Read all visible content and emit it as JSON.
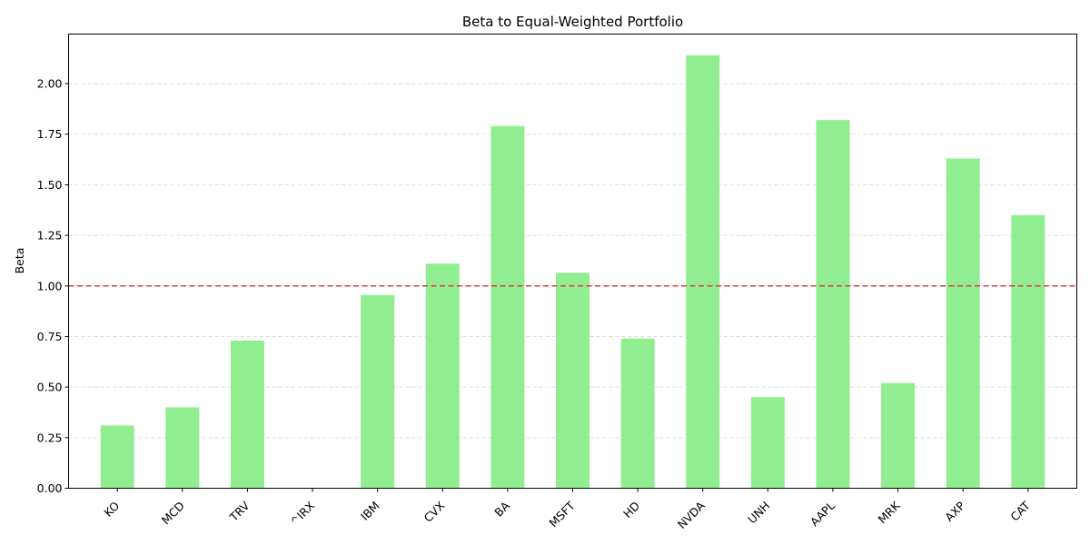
{
  "chart_data": {
    "type": "bar",
    "title": "Beta to Equal-Weighted Portfolio",
    "xlabel": "",
    "ylabel": "Beta",
    "categories": [
      "KO",
      "MCD",
      "TRV",
      "^IRX",
      "IBM",
      "CVX",
      "BA",
      "MSFT",
      "HD",
      "NVDA",
      "UNH",
      "AAPL",
      "MRK",
      "AXP",
      "CAT"
    ],
    "values": [
      0.31,
      0.4,
      0.73,
      0.0,
      0.955,
      1.11,
      1.79,
      1.065,
      0.74,
      2.14,
      0.45,
      1.82,
      0.52,
      1.63,
      1.35
    ],
    "ylim": [
      0,
      2.245
    ],
    "yticks": [
      "0.00",
      "0.25",
      "0.50",
      "0.75",
      "1.00",
      "1.25",
      "1.50",
      "1.75",
      "2.00"
    ],
    "reference_line": 1.0,
    "grid": "horizontal-dashed",
    "bar_color": "#90ee90",
    "reference_line_color": "#e03c3c",
    "legend": "none"
  }
}
